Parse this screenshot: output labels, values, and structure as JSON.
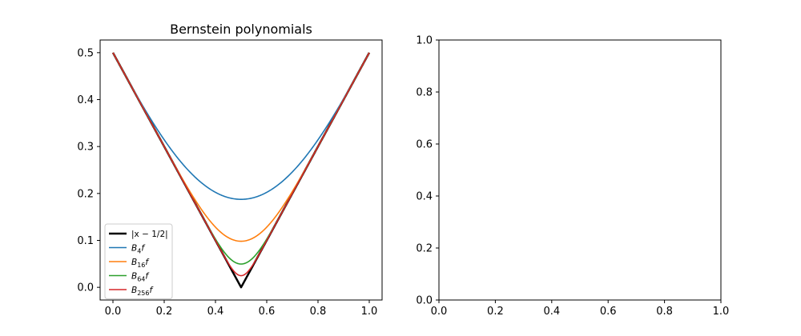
{
  "chart_data": [
    {
      "type": "line",
      "title": "Bernstein polynomials",
      "xlabel": "",
      "ylabel": "",
      "xlim": [
        -0.05,
        1.05
      ],
      "ylim": [
        -0.027,
        0.527
      ],
      "grid": false,
      "legend_position": "lower-left",
      "x_ticks": [
        "0.0",
        "0.2",
        "0.4",
        "0.6",
        "0.8",
        "1.0"
      ],
      "y_ticks": [
        "0.0",
        "0.1",
        "0.2",
        "0.3",
        "0.4",
        "0.5"
      ],
      "series": [
        {
          "name": "|x − 1/2|",
          "label_main": "|x − 1/2|",
          "label_sub": "",
          "label_tail": "",
          "function": "abs",
          "n": 0,
          "color": "#000000",
          "width": 2.5
        },
        {
          "name": "B4f",
          "label_main": "B",
          "label_sub": "4",
          "label_tail": "f",
          "function": "bernstein",
          "n": 4,
          "color": "#1f77b4",
          "width": 1.6
        },
        {
          "name": "B16f",
          "label_main": "B",
          "label_sub": "16",
          "label_tail": "f",
          "function": "bernstein",
          "n": 16,
          "color": "#ff7f0e",
          "width": 1.6
        },
        {
          "name": "B64f",
          "label_main": "B",
          "label_sub": "64",
          "label_tail": "f",
          "function": "bernstein",
          "n": 64,
          "color": "#2ca02c",
          "width": 1.6
        },
        {
          "name": "B256f",
          "label_main": "B",
          "label_sub": "256",
          "label_tail": "f",
          "function": "bernstein",
          "n": 256,
          "color": "#d62728",
          "width": 1.6
        }
      ]
    },
    {
      "type": "line",
      "title": "",
      "xlabel": "",
      "ylabel": "",
      "xlim": [
        0.0,
        1.0
      ],
      "ylim": [
        0.0,
        1.0
      ],
      "grid": false,
      "x_ticks": [
        "0.0",
        "0.2",
        "0.4",
        "0.6",
        "0.8",
        "1.0"
      ],
      "y_ticks": [
        "0.0",
        "0.2",
        "0.4",
        "0.6",
        "0.8",
        "1.0"
      ],
      "series": []
    }
  ]
}
